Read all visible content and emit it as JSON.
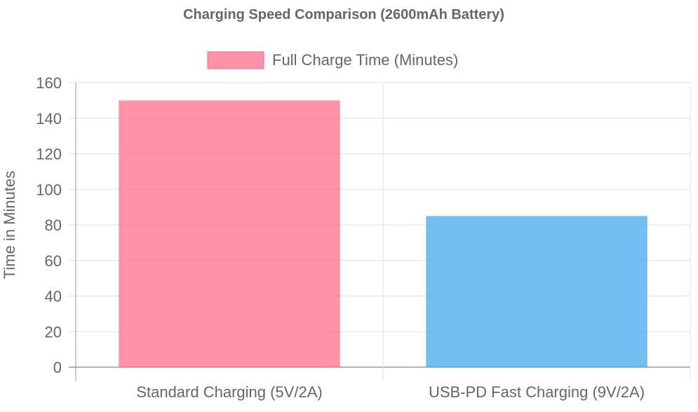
{
  "chart_data": {
    "type": "bar",
    "title": "Charging Speed Comparison (2600mAh Battery)",
    "categories": [
      "Standard Charging (5V/2A)",
      "USB-PD Fast Charging (9V/2A)"
    ],
    "series": [
      {
        "name": "Full Charge Time (Minutes)",
        "values": [
          150,
          85
        ],
        "colors": [
          "#ff6384",
          "#36a2eb"
        ],
        "opacity": 0.7
      }
    ],
    "xlabel": "",
    "ylabel": "Time in Minutes",
    "ylim": [
      0,
      160
    ],
    "yticks": [
      0,
      20,
      40,
      60,
      80,
      100,
      120,
      140,
      160
    ],
    "grid": true,
    "legend_position": "top"
  }
}
